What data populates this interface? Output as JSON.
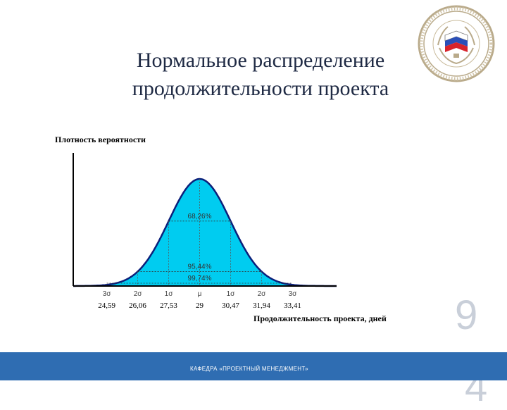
{
  "slide": {
    "title_line1": "Нормальное распределение",
    "title_line2": "продолжительности проекта",
    "page_number": "9",
    "page_number_cont": "4",
    "footer_text": "КАФЕДРА «ПРОЕКТНЫЙ МЕНЕДЖМЕНТ»"
  },
  "emblem": {
    "icon": "university-seal-icon"
  },
  "colors": {
    "curve_fill": "#00ccf0",
    "curve_stroke": "#0b1f7a",
    "axis": "#000000",
    "footer": "#2f6db2",
    "title": "#1f2a44"
  },
  "chart_data": {
    "type": "area",
    "title": "",
    "ylabel": "Плотность вероятности",
    "xlabel": "Продолжительность проекта, дней",
    "mean": 29,
    "sigma": 1.47,
    "xlim": [
      23.0,
      35.5
    ],
    "sigma_labels": [
      "3σ",
      "2σ",
      "1σ",
      "μ",
      "1σ",
      "2σ",
      "3σ"
    ],
    "tick_values": [
      24.59,
      26.06,
      27.53,
      29,
      30.47,
      31.94,
      33.41
    ],
    "tick_labels": [
      "24,59",
      "26,06",
      "27,53",
      "29",
      "30,47",
      "31,94",
      "33,41"
    ],
    "bands": [
      {
        "label": "68,26%",
        "sigmas": 1
      },
      {
        "label": "95,44%",
        "sigmas": 2
      },
      {
        "label": "99,74%",
        "sigmas": 3
      }
    ]
  }
}
